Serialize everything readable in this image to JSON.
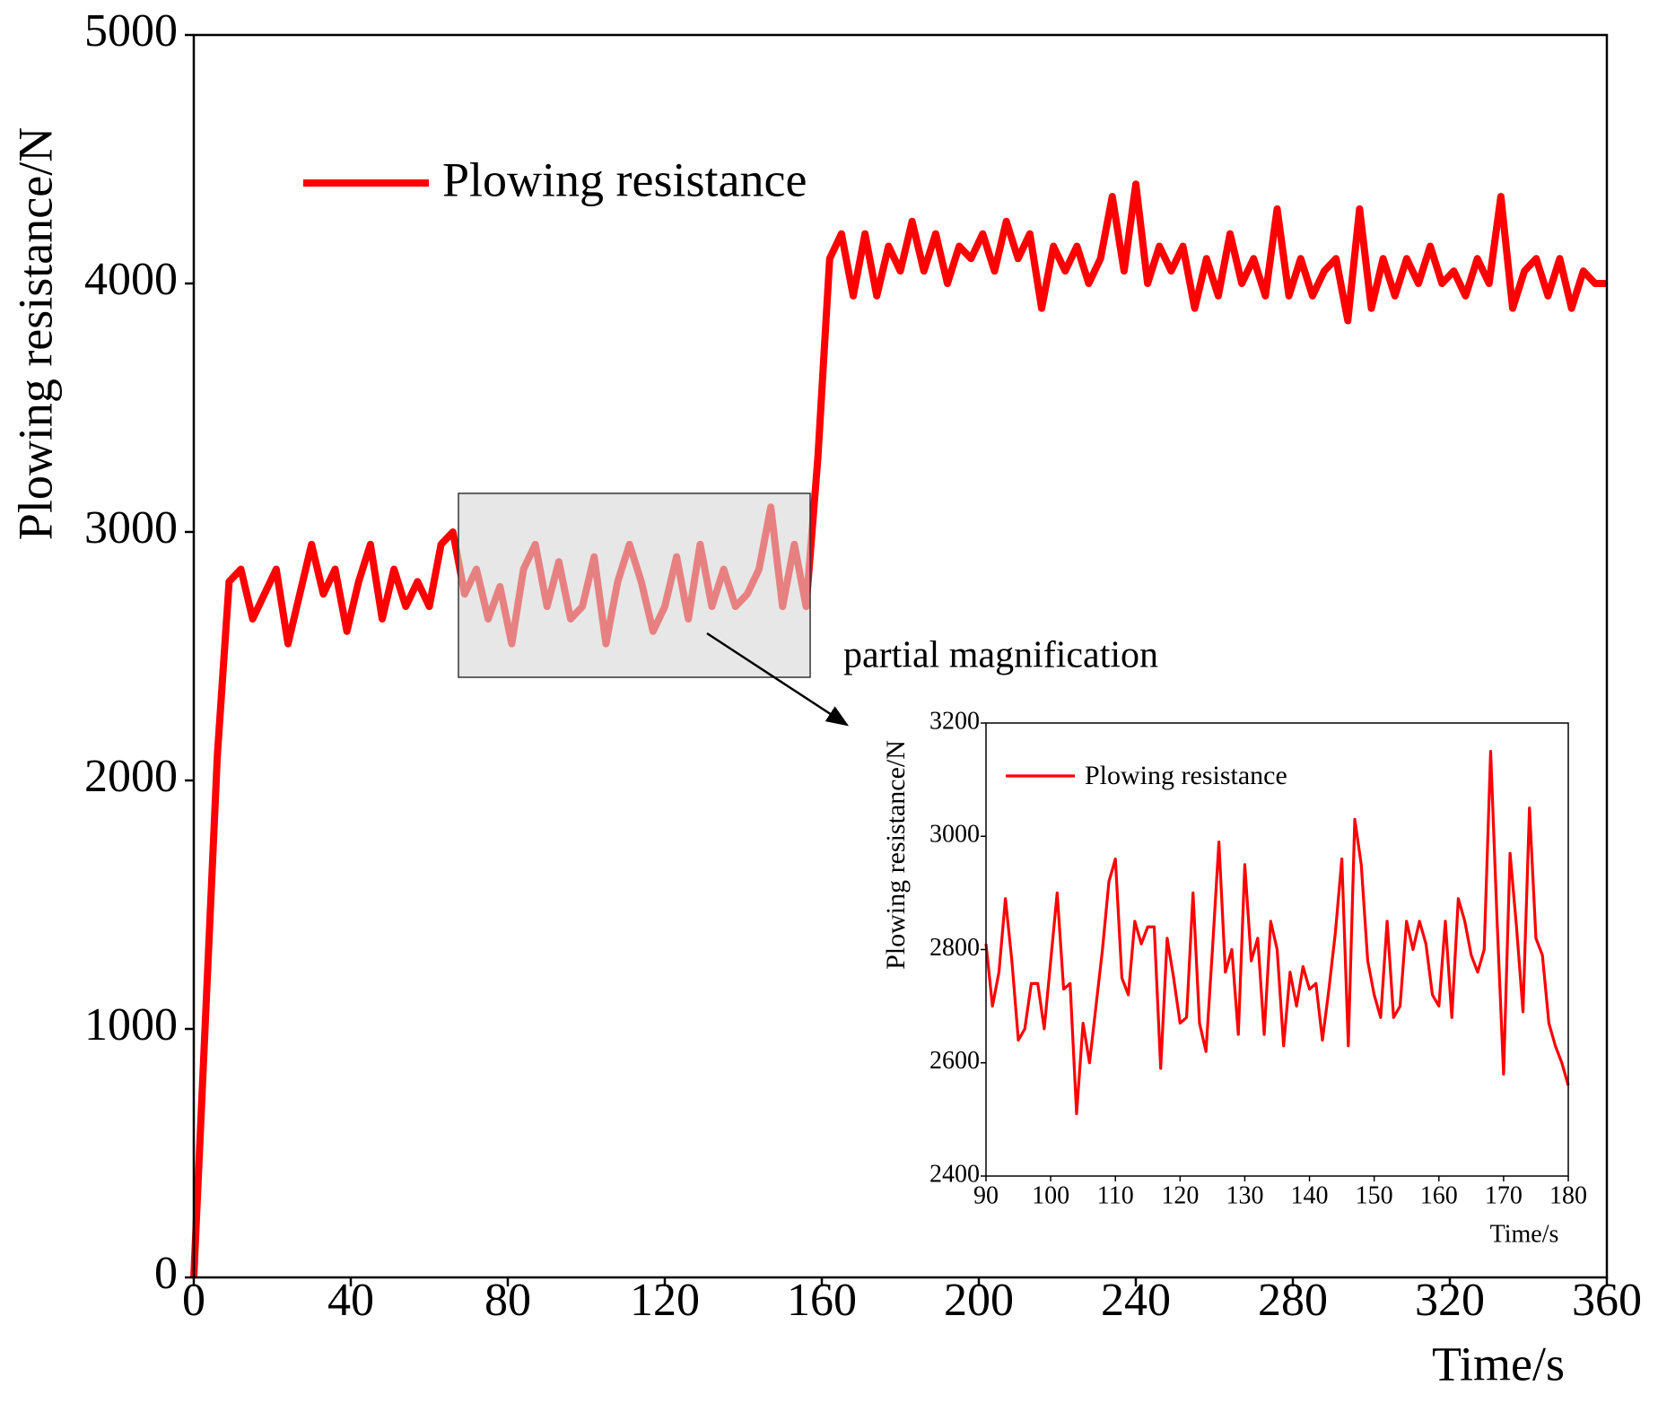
{
  "chart_data": [
    {
      "type": "line",
      "x_label": "Time/s",
      "y_label": "Plowing resistance/N",
      "annotation": "partial magnification",
      "x": [
        0,
        3,
        6,
        9,
        12,
        15,
        18,
        21,
        24,
        27,
        30,
        33,
        36,
        39,
        42,
        45,
        48,
        51,
        54,
        57,
        60,
        63,
        66,
        69,
        72,
        75,
        78,
        81,
        84,
        87,
        90,
        93,
        96,
        99,
        102,
        105,
        108,
        111,
        114,
        117,
        120,
        123,
        126,
        129,
        132,
        135,
        138,
        141,
        144,
        147,
        150,
        153,
        156,
        159,
        162,
        165,
        168,
        171,
        174,
        177,
        180,
        183,
        186,
        189,
        192,
        195,
        198,
        201,
        204,
        207,
        210,
        213,
        216,
        219,
        222,
        225,
        228,
        231,
        234,
        237,
        240,
        243,
        246,
        249,
        252,
        255,
        258,
        261,
        264,
        267,
        270,
        273,
        276,
        279,
        282,
        285,
        288,
        291,
        294,
        297,
        300,
        303,
        306,
        309,
        312,
        315,
        318,
        321,
        324,
        327,
        330,
        333,
        336,
        339,
        342,
        345,
        348,
        351,
        354,
        357,
        360
      ],
      "series": [
        {
          "name": "Plowing resistance",
          "color": "#ff0000",
          "values": [
            0,
            1050,
            2100,
            2800,
            2850,
            2650,
            2750,
            2850,
            2550,
            2750,
            2950,
            2750,
            2850,
            2600,
            2800,
            2950,
            2650,
            2850,
            2700,
            2800,
            2700,
            2950,
            3000,
            2750,
            2850,
            2650,
            2780,
            2550,
            2850,
            2950,
            2700,
            2880,
            2650,
            2700,
            2900,
            2550,
            2800,
            2950,
            2800,
            2600,
            2700,
            2900,
            2650,
            2950,
            2700,
            2850,
            2700,
            2750,
            2850,
            3100,
            2700,
            2950,
            2700,
            3300,
            4100,
            4200,
            3950,
            4200,
            3950,
            4150,
            4050,
            4250,
            4050,
            4200,
            4000,
            4150,
            4100,
            4200,
            4050,
            4250,
            4100,
            4200,
            3900,
            4150,
            4050,
            4150,
            4000,
            4100,
            4350,
            4050,
            4400,
            4000,
            4150,
            4050,
            4150,
            3900,
            4100,
            3950,
            4200,
            4000,
            4100,
            3950,
            4300,
            3950,
            4100,
            3950,
            4050,
            4100,
            3850,
            4300,
            3900,
            4100,
            3950,
            4100,
            4000,
            4150,
            4000,
            4050,
            3950,
            4100,
            4000,
            4350,
            3900,
            4050,
            4100,
            3950,
            4100,
            3900,
            4050,
            4000,
            4000
          ]
        }
      ],
      "xlim": [
        0,
        360
      ],
      "ylim": [
        0,
        5000
      ],
      "xticks": [
        0,
        40,
        80,
        120,
        160,
        200,
        240,
        280,
        320,
        360
      ],
      "yticks": [
        0,
        1000,
        2000,
        3000,
        4000,
        5000
      ]
    },
    {
      "type": "line",
      "x_label": "Time/s",
      "y_label": "Plowing resistance/N",
      "x": [
        90,
        91,
        92,
        93,
        94,
        95,
        96,
        97,
        98,
        99,
        100,
        101,
        102,
        103,
        104,
        105,
        106,
        107,
        108,
        109,
        110,
        111,
        112,
        113,
        114,
        115,
        116,
        117,
        118,
        119,
        120,
        121,
        122,
        123,
        124,
        125,
        126,
        127,
        128,
        129,
        130,
        131,
        132,
        133,
        134,
        135,
        136,
        137,
        138,
        139,
        140,
        141,
        142,
        143,
        144,
        145,
        146,
        147,
        148,
        149,
        150,
        151,
        152,
        153,
        154,
        155,
        156,
        157,
        158,
        159,
        160,
        161,
        162,
        163,
        164,
        165,
        166,
        167,
        168,
        169,
        170,
        171,
        172,
        173,
        174,
        175,
        176,
        177,
        178,
        179,
        180
      ],
      "series": [
        {
          "name": "Plowing resistance",
          "color": "#ff0000",
          "values": [
            2810,
            2700,
            2760,
            2890,
            2780,
            2640,
            2660,
            2740,
            2740,
            2660,
            2780,
            2900,
            2730,
            2740,
            2510,
            2670,
            2600,
            2700,
            2800,
            2920,
            2960,
            2750,
            2720,
            2850,
            2810,
            2840,
            2840,
            2590,
            2820,
            2750,
            2670,
            2680,
            2900,
            2670,
            2620,
            2800,
            2990,
            2760,
            2800,
            2650,
            2950,
            2780,
            2820,
            2650,
            2850,
            2800,
            2630,
            2760,
            2700,
            2770,
            2730,
            2740,
            2640,
            2730,
            2830,
            2960,
            2630,
            3030,
            2950,
            2780,
            2720,
            2680,
            2850,
            2680,
            2700,
            2850,
            2800,
            2850,
            2810,
            2720,
            2700,
            2850,
            2680,
            2890,
            2850,
            2790,
            2760,
            2800,
            3150,
            2850,
            2580,
            2970,
            2840,
            2690,
            3050,
            2820,
            2790,
            2670,
            2630,
            2600,
            2560
          ]
        }
      ],
      "xlim": [
        90,
        180
      ],
      "ylim": [
        2400,
        3200
      ],
      "xticks": [
        90,
        100,
        110,
        120,
        130,
        140,
        150,
        160,
        170,
        180
      ],
      "yticks": [
        2400,
        2600,
        2800,
        3000,
        3200
      ]
    }
  ]
}
